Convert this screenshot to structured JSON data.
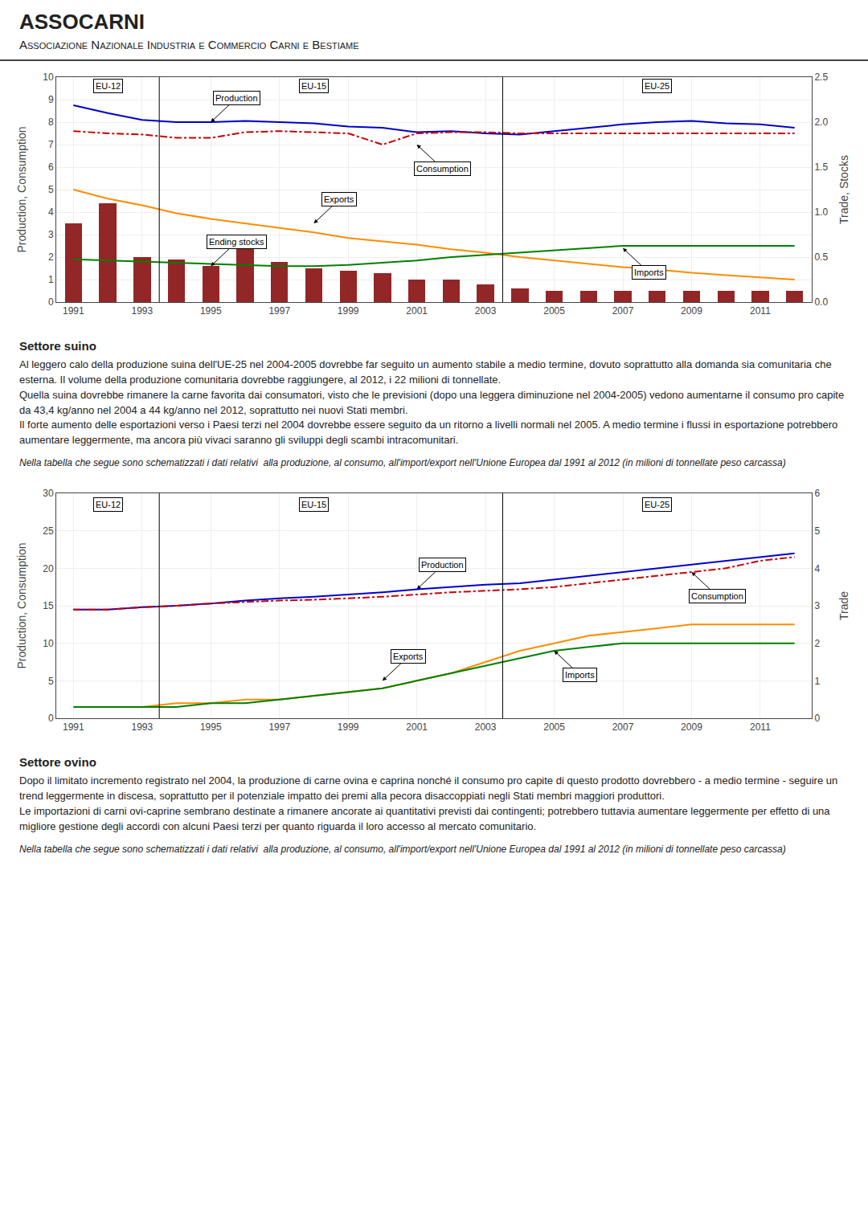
{
  "title": "ASSOCARNI",
  "subtitle": "Associazione Nazionale Industria e Commercio Carni e Bestiame",
  "chart_data": [
    {
      "type": "line",
      "x": [
        1991,
        1992,
        1993,
        1994,
        1995,
        1996,
        1997,
        1998,
        1999,
        2000,
        2001,
        2002,
        2003,
        2004,
        2005,
        2006,
        2007,
        2008,
        2009,
        2010,
        2011,
        2012
      ],
      "series": [
        {
          "name": "Ending stocks",
          "type": "bar",
          "color": "#800000",
          "values": [
            3.5,
            4.4,
            2.0,
            1.9,
            1.6,
            2.5,
            1.8,
            1.5,
            1.4,
            1.3,
            1.0,
            1.0,
            0.8,
            0.6,
            0.5,
            0.5,
            0.5,
            0.5,
            0.5,
            0.5,
            0.5,
            0.5
          ]
        },
        {
          "name": "Production",
          "type": "line",
          "color": "#0000CC",
          "line_style": "solid",
          "values": [
            8.75,
            8.4,
            8.1,
            8.0,
            8.0,
            8.05,
            8.0,
            7.95,
            7.8,
            7.75,
            7.55,
            7.6,
            7.5,
            7.45,
            7.6,
            7.75,
            7.9,
            8.0,
            8.05,
            7.95,
            7.9,
            7.75
          ]
        },
        {
          "name": "Consumption",
          "type": "line",
          "color": "#CC0000",
          "line_style": "dashdot",
          "values": [
            7.6,
            7.5,
            7.45,
            7.3,
            7.3,
            7.55,
            7.6,
            7.55,
            7.5,
            7.0,
            7.5,
            7.55,
            7.55,
            7.5,
            7.5,
            7.5,
            7.5,
            7.5,
            7.5,
            7.5,
            7.5,
            7.5
          ]
        },
        {
          "name": "Exports",
          "type": "line",
          "color": "#FF8C00",
          "line_style": "solid",
          "values": [
            5.0,
            4.6,
            4.3,
            3.95,
            3.7,
            3.5,
            3.3,
            3.1,
            2.85,
            2.7,
            2.55,
            2.35,
            2.2,
            2.0,
            1.85,
            1.7,
            1.55,
            1.45,
            1.3,
            1.2,
            1.1,
            1.0
          ]
        },
        {
          "name": "Imports",
          "type": "line",
          "color": "#008000",
          "line_style": "solid",
          "values": [
            1.9,
            1.85,
            1.8,
            1.75,
            1.7,
            1.65,
            1.6,
            1.6,
            1.65,
            1.75,
            1.85,
            2.0,
            2.1,
            2.2,
            2.3,
            2.4,
            2.5,
            2.5,
            2.5,
            2.5,
            2.5,
            2.5
          ]
        }
      ],
      "xlim": [
        1990.5,
        2012.5
      ],
      "xticks": [
        1991,
        1993,
        1995,
        1997,
        1999,
        2001,
        2003,
        2005,
        2007,
        2009,
        2011
      ],
      "ylim": [
        0,
        10
      ],
      "yticks": [
        0,
        1,
        2,
        3,
        4,
        5,
        6,
        7,
        8,
        9,
        10
      ],
      "y2lim": [
        0.0,
        2.5
      ],
      "y2ticks": [
        {
          "value": 0,
          "label": "0.0"
        },
        {
          "value": 0.5,
          "label": "0.5"
        },
        {
          "value": 1,
          "label": "1.0"
        },
        {
          "value": 1.5,
          "label": "1.5"
        },
        {
          "value": 2,
          "label": "2.0"
        },
        {
          "value": 2.5,
          "label": "2.5"
        }
      ],
      "ylabel": "Production, Consumption",
      "y2label": "Trade, Stocks",
      "grid": true,
      "vlines": [
        1993.5,
        2003.5
      ],
      "annotations": [
        {
          "text": "EU-12",
          "x": 1992,
          "y": 9.6,
          "arrow": false
        },
        {
          "text": "EU-15",
          "x": 1998,
          "y": 9.6,
          "arrow": false
        },
        {
          "text": "EU-25",
          "x": 2008,
          "y": 9.6,
          "arrow": false
        },
        {
          "text": "Production",
          "x": 1995,
          "y": 8.0,
          "arrow": true
        },
        {
          "text": "Consumption",
          "x": 2001,
          "y": 7.0,
          "arrow": true
        },
        {
          "text": "Exports",
          "x": 1998,
          "y": 3.5,
          "arrow": true
        },
        {
          "text": "Imports",
          "x": 2007,
          "y": 2.4,
          "arrow": true
        },
        {
          "text": "Ending stocks",
          "x": 1995,
          "y": 1.6,
          "arrow": true
        }
      ]
    },
    {
      "type": "line",
      "x": [
        1991,
        1992,
        1993,
        1994,
        1995,
        1996,
        1997,
        1998,
        1999,
        2000,
        2001,
        2002,
        2003,
        2004,
        2005,
        2006,
        2007,
        2008,
        2009,
        2010,
        2011,
        2012
      ],
      "series": [
        {
          "name": "Production",
          "type": "line",
          "color": "#0000CC",
          "line_style": "solid",
          "values": [
            14.5,
            14.5,
            14.8,
            15.0,
            15.3,
            15.7,
            16.0,
            16.2,
            16.5,
            16.8,
            17.2,
            17.5,
            17.8,
            18.0,
            18.5,
            19.0,
            19.5,
            20.0,
            20.5,
            21.0,
            21.5,
            22.0
          ]
        },
        {
          "name": "Consumption",
          "type": "line",
          "color": "#CC0000",
          "line_style": "dashdot",
          "values": [
            14.5,
            14.5,
            14.8,
            15.0,
            15.3,
            15.5,
            15.7,
            15.8,
            16.0,
            16.2,
            16.5,
            16.8,
            17.0,
            17.2,
            17.5,
            18.0,
            18.5,
            19.0,
            19.5,
            20.0,
            21.0,
            21.5
          ]
        },
        {
          "name": "Exports",
          "type": "line",
          "axis": "y2",
          "color": "#FF8C00",
          "line_style": "solid",
          "values": [
            0.3,
            0.3,
            0.3,
            0.4,
            0.4,
            0.5,
            0.5,
            0.6,
            0.7,
            0.8,
            1.0,
            1.2,
            1.5,
            1.8,
            2.0,
            2.2,
            2.3,
            2.4,
            2.5,
            2.5,
            2.5,
            2.5
          ]
        },
        {
          "name": "Imports",
          "type": "line",
          "axis": "y2",
          "color": "#008000",
          "line_style": "solid",
          "values": [
            0.3,
            0.3,
            0.3,
            0.3,
            0.4,
            0.4,
            0.5,
            0.6,
            0.7,
            0.8,
            1.0,
            1.2,
            1.4,
            1.6,
            1.8,
            1.9,
            2.0,
            2.0,
            2.0,
            2.0,
            2.0,
            2.0
          ]
        }
      ],
      "xlim": [
        1990.5,
        2012.5
      ],
      "xticks": [
        1991,
        1993,
        1995,
        1997,
        1999,
        2001,
        2003,
        2005,
        2007,
        2009,
        2011
      ],
      "ylim": [
        0,
        30
      ],
      "yticks": [
        0,
        5,
        10,
        15,
        20,
        25,
        30
      ],
      "y2lim": [
        0,
        6
      ],
      "y2ticks": [
        0,
        1,
        2,
        3,
        4,
        5,
        6
      ],
      "ylabel": "Production, Consumption",
      "y2label": "Trade",
      "grid": true,
      "vlines": [
        1993.5,
        2003.5
      ],
      "annotations": [
        {
          "text": "EU-12",
          "x": 1992,
          "y": 28.5,
          "arrow": false
        },
        {
          "text": "EU-15",
          "x": 1998,
          "y": 28.5,
          "arrow": false
        },
        {
          "text": "EU-25",
          "x": 2008,
          "y": 28.5,
          "arrow": false
        },
        {
          "text": "Production",
          "x": 2001,
          "y": 17.2,
          "arrow": true
        },
        {
          "text": "Consumption",
          "x": 2009,
          "y": 19.5,
          "arrow": true
        },
        {
          "text": "Exports",
          "x": 2000,
          "y": 1.0,
          "axis": "y2",
          "arrow": true
        },
        {
          "text": "Imports",
          "x": 2005,
          "y": 1.8,
          "axis": "y2",
          "arrow": true
        }
      ]
    }
  ],
  "sections": [
    {
      "title": "Settore suino",
      "text": "Al leggero calo della produzione suina dell'UE-25 nel 2004-2005 dovrebbe far seguito un aumento stabile a medio termine, dovuto soprattutto alla domanda sia comunitaria che esterna. Il volume della produzione comunitaria dovrebbe raggiungere, al 2012, i 22 milioni di tonnellate.\nQuella suina dovrebbe rimanere la carne favorita dai consumatori, visto che le previsioni (dopo una leggera diminuzione nel 2004-2005) vedono aumentarne il consumo pro capite da 43,4 kg/anno nel 2004 a 44 kg/anno nel 2012, soprattutto nei nuovi Stati membri.\nIl forte aumento delle esportazioni verso i Paesi terzi nel 2004 dovrebbe essere seguito da un ritorno a livelli normali nel 2005. A medio termine i flussi in esportazione potrebbero aumentare leggermente, ma ancora più vivaci saranno gli sviluppi degli scambi intracomunitari.",
      "caption": "Nella tabella che segue sono schematizzati i dati relativi  alla produzione, al consumo, all'import/export nell'Unione Europea dal 1991 al 2012 (in milioni di tonnellate peso carcassa)"
    },
    {
      "title": "Settore ovino",
      "text": "Dopo il limitato incremento registrato nel 2004, la produzione di carne ovina e caprina nonché il consumo pro capite di questo prodotto dovrebbero - a medio termine - seguire un trend leggermente in discesa, soprattutto per il potenziale impatto dei premi alla pecora disaccoppiati negli Stati membri maggiori produttori.\nLe importazioni di carni ovi-caprine sembrano destinate a rimanere ancorate ai quantitativi previsti dai contingenti; potrebbero tuttavia aumentare leggermente per effetto di una migliore gestione degli accordi con alcuni Paesi terzi per quanto riguarda il loro accesso al mercato comunitario.",
      "caption": "Nella tabella che segue sono schematizzati i dati relativi  alla produzione, al consumo, all'import/export nell'Unione Europea dal 1991 al 2012 (in milioni di tonnellate peso carcassa)"
    }
  ]
}
